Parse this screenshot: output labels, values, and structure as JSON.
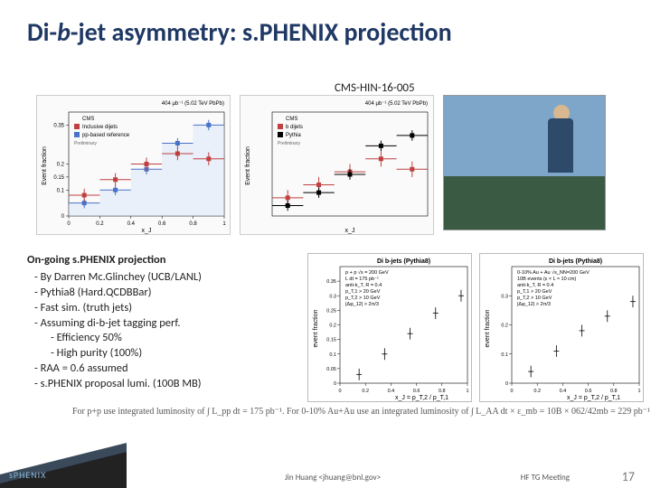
{
  "title_parts": {
    "pre": "Di-",
    "it": "b",
    "post": "-jet asymmetry: s.PHENIX projection"
  },
  "note_top": "CMS-HIN-16-005",
  "ongoing": {
    "heading": "On-going s.PHENIX projection",
    "items": [
      "By Darren Mc.Glinchey (UCB/LANL)",
      "Pythia8 (Hard.QCDBBar)",
      "Fast sim. (truth jets)",
      "Assuming di-b-jet tagging perf."
    ],
    "subitems": [
      "Efficiency 50%",
      "High purity (100%)"
    ],
    "items2": [
      "RAA = 0.6 assumed",
      "s.PHENIX proposal lumi. (100B MB)"
    ]
  },
  "formula": "For p+p use integrated luminosity of ∫ L_pp dt = 175 pb⁻¹.   For 0-10% Au+Au use an integrated luminosity of ∫ L_AA dt × ε_mb = 10B × 062/42mb = 229 pb⁻¹",
  "footer_mid": "Jin Huang <jhuang@bnl.gov>",
  "footer_right": "HF TG Meeting",
  "pagenum": "17",
  "logo": "sPHENIX",
  "chartA": {
    "type": "step-hist",
    "xlabel": "x_J",
    "ylabel": "Event fraction",
    "xlim": [
      0,
      1
    ],
    "ylim": [
      0,
      0.4
    ],
    "xticks": [
      0,
      0.2,
      0.4,
      0.6,
      0.8,
      1.0
    ],
    "yticks": [
      0,
      0.1,
      0.15,
      0.2,
      0.35
    ],
    "series": {
      "pp_ref": {
        "color": "#4a72c8",
        "fill": "#cfe0f7",
        "x": [
          0.1,
          0.3,
          0.5,
          0.7,
          0.9
        ],
        "y": [
          0.05,
          0.1,
          0.18,
          0.28,
          0.35
        ],
        "dy": [
          0.02,
          0.02,
          0.02,
          0.02,
          0.02
        ]
      },
      "pbpb": {
        "color": "#c04040",
        "x": [
          0.1,
          0.3,
          0.5,
          0.7,
          0.9
        ],
        "y": [
          0.08,
          0.14,
          0.2,
          0.24,
          0.22
        ],
        "dy": [
          0.025,
          0.025,
          0.025,
          0.025,
          0.025
        ]
      }
    },
    "legend": [
      {
        "label": "CMS",
        "swatch": "none"
      },
      {
        "label": "Inclusive dijets",
        "color": "#c04040"
      },
      {
        "label": "pp-based reference",
        "color": "#4a72c8"
      }
    ],
    "header": "404 μb⁻¹ (5.02 TeV PbPb)",
    "sublabel": "Preliminary"
  },
  "chartB": {
    "type": "step-hist",
    "xlabel": "x_J",
    "ylabel": "Event fraction",
    "xlim": [
      0,
      1
    ],
    "ylim": [
      0,
      0.4
    ],
    "series": {
      "pbpb": {
        "color": "#c04040",
        "x": [
          0.1,
          0.3,
          0.5,
          0.7,
          0.9
        ],
        "y": [
          0.07,
          0.12,
          0.17,
          0.22,
          0.18
        ],
        "dy": [
          0.03,
          0.03,
          0.03,
          0.03,
          0.03
        ]
      },
      "pythia": {
        "color": "#000000",
        "x": [
          0.1,
          0.3,
          0.5,
          0.7,
          0.9
        ],
        "y": [
          0.04,
          0.09,
          0.16,
          0.27,
          0.31
        ],
        "dy": [
          0.02,
          0.02,
          0.02,
          0.02,
          0.02
        ]
      }
    },
    "legend": [
      {
        "label": "CMS",
        "swatch": "none"
      },
      {
        "label": "b dijets",
        "color": "#c04040"
      },
      {
        "label": "Pythia",
        "color": "#000"
      }
    ],
    "header": "404 μb⁻¹ (5.02 TeV PbPb)",
    "sublabel": "Preliminary"
  },
  "miniA": {
    "type": "scatter-err",
    "title": "Di b-jets (Pythia8)",
    "info": [
      "p + p √s = 200 GeV",
      "L dt = 175 pb⁻¹",
      "anti-k_T, R = 0.4",
      "p_T,1 > 20 GeV",
      "p_T,2 > 10 GeV",
      "|Δφ_12| > 2π/3"
    ],
    "xlabel": "x_J = p_T,2 / p_T,1",
    "ylabel": "event fraction",
    "xlim": [
      0,
      1
    ],
    "ylim": [
      0,
      0.4
    ],
    "xticks": [
      0,
      0.2,
      0.4,
      0.6,
      0.8,
      1.0
    ],
    "yticks": [
      0,
      0.05,
      0.1,
      0.15,
      0.2,
      0.25,
      0.3,
      0.35
    ],
    "points": {
      "x": [
        0.15,
        0.35,
        0.55,
        0.75,
        0.95
      ],
      "y": [
        0.03,
        0.1,
        0.17,
        0.24,
        0.3
      ],
      "dy": [
        0.02,
        0.02,
        0.02,
        0.02,
        0.02
      ],
      "marker": "cross",
      "color": "#000"
    }
  },
  "miniB": {
    "type": "scatter-err",
    "title": "Di b-jets (Pythia8)",
    "info": [
      "0-10% Au + Au √s_NN=200 GeV",
      "10B events (ε × L ≈ 10 cm)",
      "anti-k_T, R = 0.4",
      "p_T,1 > 20 GeV",
      "p_T,2 > 10 GeV",
      "|Δφ_12| > 2π/3"
    ],
    "xlabel": "x_J = p_T,2 / p_T,1",
    "ylabel": "event fraction",
    "xlim": [
      0,
      1
    ],
    "ylim": [
      0,
      0.4
    ],
    "points": {
      "x": [
        0.15,
        0.35,
        0.55,
        0.75,
        0.95
      ],
      "y": [
        0.04,
        0.11,
        0.18,
        0.23,
        0.28
      ],
      "dy": [
        0.02,
        0.02,
        0.02,
        0.02,
        0.02
      ],
      "marker": "cross",
      "color": "#000"
    }
  }
}
